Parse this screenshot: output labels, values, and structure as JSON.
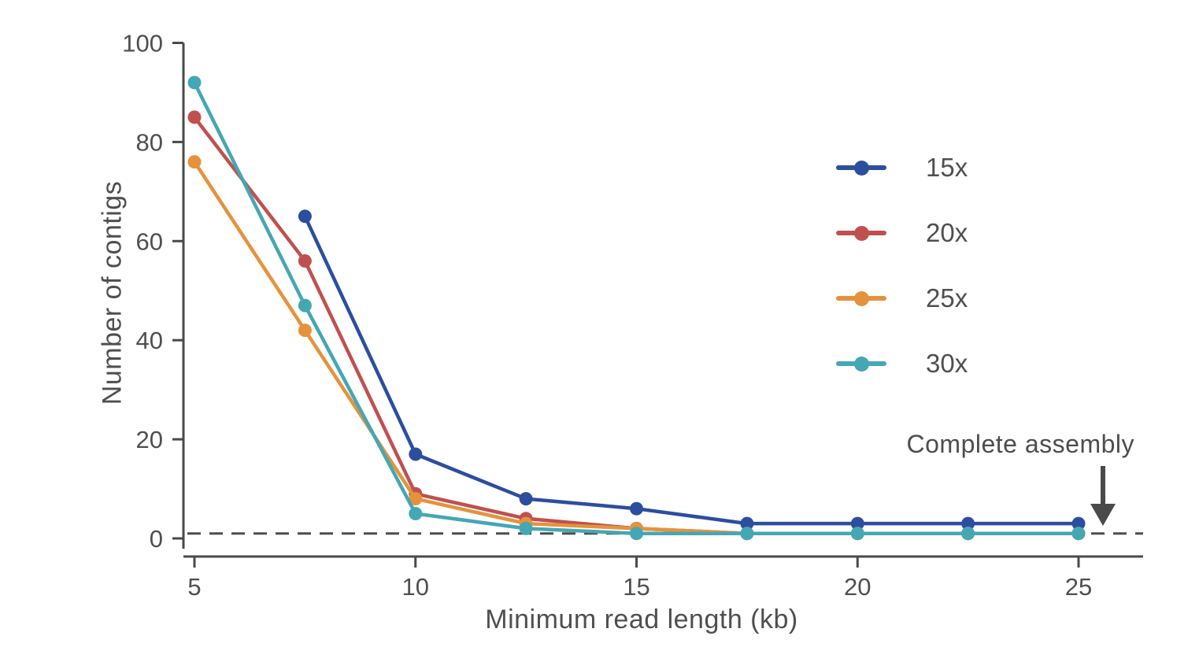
{
  "chart_data": {
    "type": "line",
    "title": "",
    "xlabel": "Minimum read length (kb)",
    "ylabel": "Number of contigs",
    "xlim": [
      5,
      25
    ],
    "ylim": [
      0,
      100
    ],
    "xticks": [
      5,
      10,
      15,
      20,
      25
    ],
    "yticks": [
      0,
      20,
      40,
      60,
      80,
      100
    ],
    "grid": false,
    "legend_position": "upper right",
    "axis_color": "#4a4a4a",
    "series": [
      {
        "name": "15x",
        "color": "#2c4e9e",
        "x": [
          7.5,
          10,
          12.5,
          15,
          17.5,
          20,
          22.5,
          25
        ],
        "values": [
          65,
          17,
          8,
          6,
          3,
          3,
          3,
          3
        ]
      },
      {
        "name": "20x",
        "color": "#c0504e",
        "x": [
          5,
          7.5,
          10,
          12.5,
          15,
          17.5,
          20,
          22.5,
          25
        ],
        "values": [
          85,
          56,
          9,
          4,
          2,
          1,
          1,
          1,
          1
        ]
      },
      {
        "name": "25x",
        "color": "#e6923c",
        "x": [
          5,
          7.5,
          10,
          12.5,
          15,
          17.5,
          20,
          22.5,
          25
        ],
        "values": [
          76,
          42,
          8,
          3,
          2,
          1,
          1,
          1,
          1
        ]
      },
      {
        "name": "30x",
        "color": "#44a7b4",
        "x": [
          5,
          7.5,
          10,
          12.5,
          15,
          17.5,
          20,
          22.5,
          25
        ],
        "values": [
          92,
          47,
          5,
          2,
          1,
          1,
          1,
          1,
          1
        ]
      }
    ],
    "reference_line": {
      "y": 1,
      "style": "dashed",
      "color": "#4d4d4d"
    },
    "annotation": {
      "text": "Complete assembly"
    }
  }
}
